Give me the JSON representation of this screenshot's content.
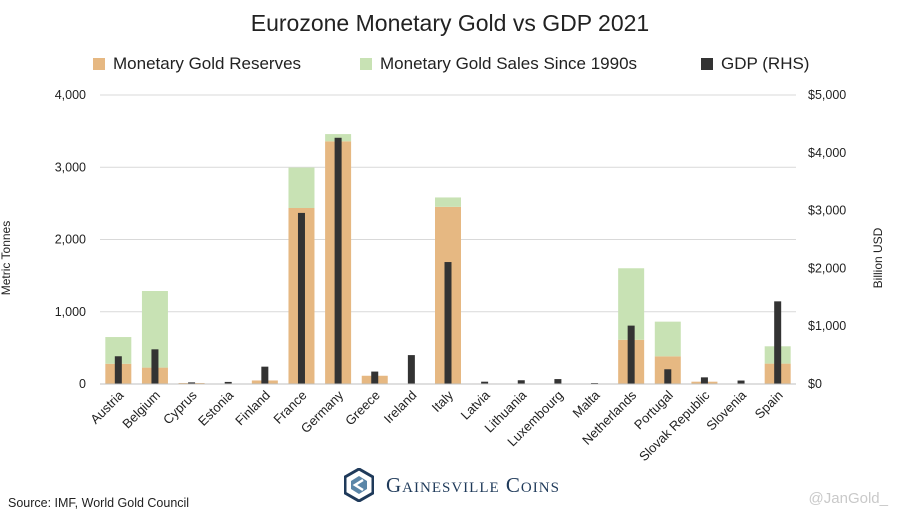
{
  "chart_data": {
    "type": "bar",
    "title": "Eurozone Monetary Gold vs GDP 2021",
    "ylabel": "Metric Tonnes",
    "ylabel_right": "Billion USD",
    "ylim": [
      0,
      4000
    ],
    "ylim_right": [
      0,
      5000
    ],
    "yticks": [
      "0",
      "1,000",
      "2,000",
      "3,000",
      "4,000"
    ],
    "yticks_right": [
      "$0",
      "$1,000",
      "$2,000",
      "$3,000",
      "$4,000",
      "$5,000"
    ],
    "grid": true,
    "legend_position": "top",
    "categories": [
      "Austria",
      "Belgium",
      "Cyprus",
      "Estonia",
      "Finland",
      "France",
      "Germany",
      "Greece",
      "Ireland",
      "Italy",
      "Latvia",
      "Lithuania",
      "Luxembourg",
      "Malta",
      "Netherlands",
      "Portugal",
      "Slovak Republic",
      "Slovenia",
      "Spain"
    ],
    "series": [
      {
        "name": "Monetary Gold Reserves",
        "axis": "left",
        "stack": "gold",
        "color": "#e6b882",
        "values": [
          280,
          227,
          14,
          0,
          49,
          2436,
          3359,
          114,
          6,
          2452,
          7,
          6,
          2,
          0,
          612,
          383,
          32,
          3,
          282
        ]
      },
      {
        "name": "Monetary Gold Sales Since 1990s",
        "axis": "left",
        "stack": "gold",
        "color": "#c8e2b4",
        "values": [
          370,
          1060,
          0,
          0,
          0,
          560,
          100,
          0,
          0,
          130,
          0,
          0,
          0,
          0,
          990,
          480,
          0,
          0,
          240
        ]
      },
      {
        "name": "GDP (RHS)",
        "axis": "right",
        "color": "#333333",
        "values": [
          480,
          600,
          28,
          36,
          300,
          2960,
          4260,
          215,
          500,
          2110,
          40,
          65,
          85,
          17,
          1010,
          255,
          115,
          60,
          1430
        ]
      }
    ]
  },
  "source": "Source: IMF, World Gold Council",
  "logo_text": "Gainesville Coins",
  "watermark": "@JanGold_"
}
